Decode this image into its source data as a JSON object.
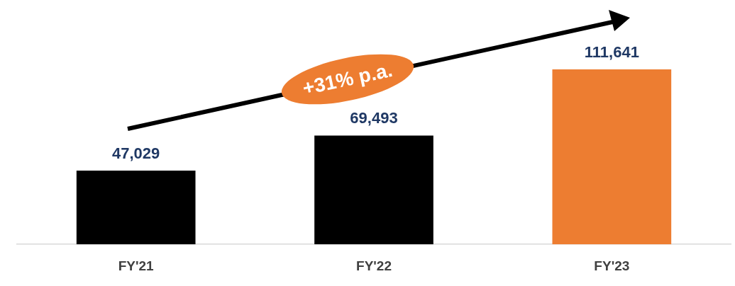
{
  "chart_data": {
    "type": "bar",
    "categories": [
      "FY'21",
      "FY'22",
      "FY'23"
    ],
    "values": [
      47029,
      69493,
      111641
    ],
    "colors": [
      "#000000",
      "#000000",
      "#ed7d31"
    ],
    "value_labels": [
      "47,029",
      "69,493",
      "111,641"
    ],
    "annotations": [
      "+31% p.a."
    ]
  }
}
